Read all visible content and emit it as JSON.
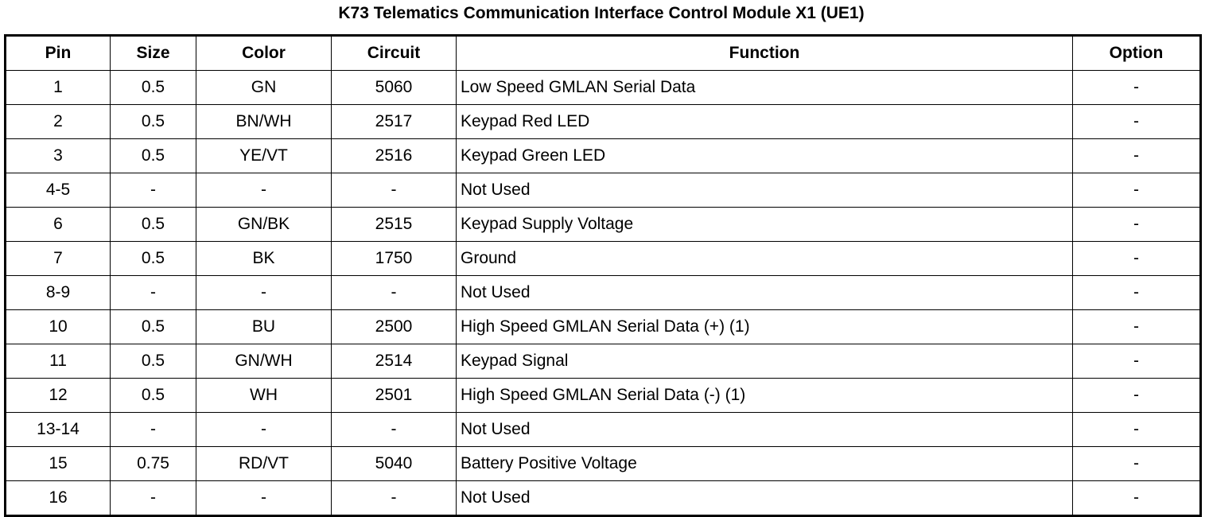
{
  "title": "K73 Telematics Communication Interface Control Module X1 (UE1)",
  "columns": [
    "Pin",
    "Size",
    "Color",
    "Circuit",
    "Function",
    "Option"
  ],
  "rows": [
    [
      "1",
      "0.5",
      "GN",
      "5060",
      "Low Speed GMLAN Serial Data",
      "-"
    ],
    [
      "2",
      "0.5",
      "BN/WH",
      "2517",
      "Keypad Red LED",
      "-"
    ],
    [
      "3",
      "0.5",
      "YE/VT",
      "2516",
      "Keypad Green LED",
      "-"
    ],
    [
      "4-5",
      "-",
      "-",
      "-",
      "Not Used",
      "-"
    ],
    [
      "6",
      "0.5",
      "GN/BK",
      "2515",
      "Keypad Supply Voltage",
      "-"
    ],
    [
      "7",
      "0.5",
      "BK",
      "1750",
      "Ground",
      "-"
    ],
    [
      "8-9",
      "-",
      "-",
      "-",
      "Not Used",
      "-"
    ],
    [
      "10",
      "0.5",
      "BU",
      "2500",
      "High Speed GMLAN Serial Data (+) (1)",
      "-"
    ],
    [
      "11",
      "0.5",
      "GN/WH",
      "2514",
      "Keypad Signal",
      "-"
    ],
    [
      "12",
      "0.5",
      "WH",
      "2501",
      "High Speed GMLAN Serial Data (-) (1)",
      "-"
    ],
    [
      "13-14",
      "-",
      "-",
      "-",
      "Not Used",
      "-"
    ],
    [
      "15",
      "0.75",
      "RD/VT",
      "5040",
      "Battery Positive Voltage",
      "-"
    ],
    [
      "16",
      "-",
      "-",
      "-",
      "Not Used",
      "-"
    ]
  ]
}
